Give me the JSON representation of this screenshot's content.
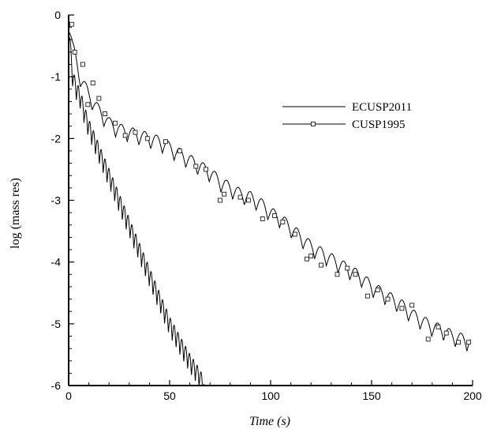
{
  "chart_data": {
    "type": "line",
    "xlabel": "Time (s)",
    "ylabel": "log (mass res)",
    "xlim": [
      0,
      200
    ],
    "ylim": [
      -6,
      0
    ],
    "xticks": [
      "0",
      "50",
      "100",
      "150",
      "200"
    ],
    "yticks": [
      "0",
      "-1",
      "-2",
      "-3",
      "-4",
      "-5",
      "-6"
    ],
    "grid": false,
    "legend_position": "top-right",
    "series": [
      {
        "name": "ECUSP2011",
        "marker": "none",
        "color": "#000000",
        "x": [
          0,
          2,
          4,
          6,
          8,
          10,
          15,
          20,
          25,
          30,
          35,
          40,
          45,
          50,
          55,
          60,
          65,
          67
        ],
        "y": [
          -0.2,
          -1.0,
          -1.2,
          -1.35,
          -1.6,
          -1.8,
          -2.2,
          -2.6,
          -3.0,
          -3.4,
          -3.8,
          -4.2,
          -4.6,
          -5.0,
          -5.3,
          -5.6,
          -5.85,
          -6.0
        ],
        "oscillation_amplitude": 0.22,
        "oscillation_period": 1.9
      },
      {
        "name": "CUSP1995",
        "marker": "square",
        "color": "#000000",
        "x": [
          0,
          2,
          5,
          8,
          10,
          15,
          20,
          25,
          30,
          35,
          40,
          45,
          50,
          55,
          60,
          65,
          70,
          75,
          80,
          85,
          90,
          95,
          100,
          105,
          110,
          115,
          120,
          125,
          130,
          135,
          140,
          145,
          150,
          155,
          160,
          165,
          170,
          175,
          180,
          185,
          190,
          195,
          199
        ],
        "y": [
          -0.1,
          -0.5,
          -0.95,
          -1.15,
          -1.3,
          -1.55,
          -1.75,
          -1.85,
          -1.9,
          -1.95,
          -2.0,
          -2.05,
          -2.15,
          -2.25,
          -2.35,
          -2.45,
          -2.55,
          -2.7,
          -2.8,
          -2.9,
          -2.95,
          -3.05,
          -3.2,
          -3.3,
          -3.45,
          -3.6,
          -3.75,
          -3.85,
          -3.95,
          -4.05,
          -4.15,
          -4.25,
          -4.4,
          -4.5,
          -4.6,
          -4.7,
          -4.85,
          -4.95,
          -5.05,
          -5.1,
          -5.2,
          -5.25,
          -5.3
        ],
        "oscillation_amplitude": 0.18,
        "oscillation_period": 5.8,
        "markers_x": [
          1.5,
          3,
          7,
          9.5,
          12,
          15,
          18,
          23,
          28,
          33,
          39,
          48,
          55,
          63,
          68,
          75,
          77,
          85,
          89,
          96,
          102,
          106,
          112,
          118,
          120,
          125,
          133,
          138,
          142,
          148,
          153,
          158,
          165,
          170,
          178,
          183,
          187,
          193,
          198
        ],
        "markers_y": [
          -0.15,
          -0.6,
          -0.8,
          -1.45,
          -1.1,
          -1.35,
          -1.6,
          -1.75,
          -1.95,
          -1.9,
          -2.0,
          -2.05,
          -2.2,
          -2.45,
          -2.5,
          -3.0,
          -2.9,
          -2.95,
          -3.0,
          -3.3,
          -3.25,
          -3.35,
          -3.55,
          -3.95,
          -3.9,
          -4.05,
          -4.2,
          -4.1,
          -4.2,
          -4.55,
          -4.45,
          -4.6,
          -4.75,
          -4.7,
          -5.25,
          -5.05,
          -5.15,
          -5.3,
          -5.3
        ]
      }
    ]
  }
}
